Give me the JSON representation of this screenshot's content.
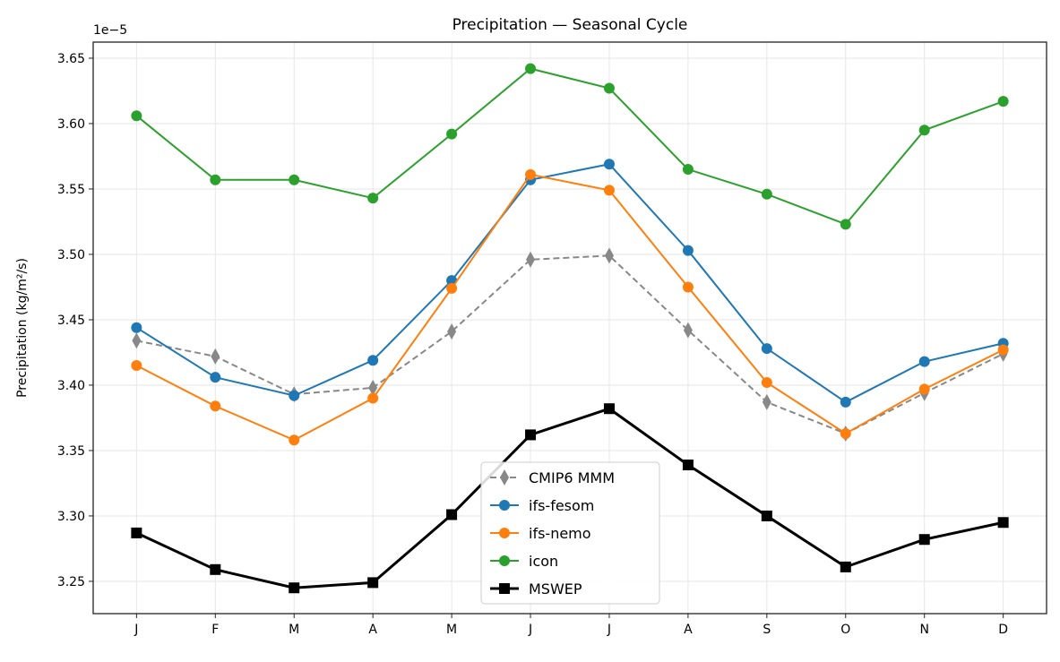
{
  "chart_data": {
    "type": "line",
    "title": "Precipitation — Seasonal Cycle",
    "xlabel": "",
    "ylabel": "Precipitation (kg/m²/s)",
    "y_offset_label": "1e−5",
    "categories": [
      "J",
      "F",
      "M",
      "A",
      "M",
      "J",
      "J",
      "A",
      "S",
      "O",
      "N",
      "D"
    ],
    "ylim": [
      3.2253,
      3.6623
    ],
    "xlim": [
      -0.55,
      11.55
    ],
    "yticks": [
      3.25,
      3.3,
      3.35,
      3.4,
      3.45,
      3.5,
      3.55,
      3.6,
      3.65
    ],
    "ytick_labels": [
      "3.25",
      "3.30",
      "3.35",
      "3.40",
      "3.45",
      "3.50",
      "3.55",
      "3.60",
      "3.65"
    ],
    "grid": true,
    "legend_placement": "lower-center",
    "series": [
      {
        "name": "CMIP6 MMM",
        "color": "#888888",
        "marker": "thin-diamond",
        "dash": true,
        "values": [
          3.434,
          3.422,
          3.393,
          3.398,
          3.441,
          3.496,
          3.499,
          3.442,
          3.387,
          3.363,
          3.394,
          3.424
        ]
      },
      {
        "name": "ifs-fesom",
        "color": "#1f77b4",
        "marker": "circle",
        "values": [
          3.444,
          3.406,
          3.392,
          3.419,
          3.48,
          3.557,
          3.569,
          3.503,
          3.428,
          3.387,
          3.418,
          3.432
        ]
      },
      {
        "name": "ifs-nemo",
        "color": "#ff7f0e",
        "marker": "circle",
        "values": [
          3.415,
          3.384,
          3.358,
          3.39,
          3.474,
          3.561,
          3.549,
          3.475,
          3.402,
          3.363,
          3.397,
          3.427
        ]
      },
      {
        "name": "icon",
        "color": "#2ca02c",
        "marker": "circle",
        "values": [
          3.606,
          3.557,
          3.557,
          3.543,
          3.592,
          3.642,
          3.627,
          3.565,
          3.546,
          3.523,
          3.595,
          3.617
        ]
      },
      {
        "name": "MSWEP",
        "color": "#000000",
        "marker": "square",
        "bold": true,
        "values": [
          3.287,
          3.259,
          3.245,
          3.249,
          3.301,
          3.362,
          3.382,
          3.339,
          3.3,
          3.261,
          3.282,
          3.295
        ]
      }
    ]
  }
}
